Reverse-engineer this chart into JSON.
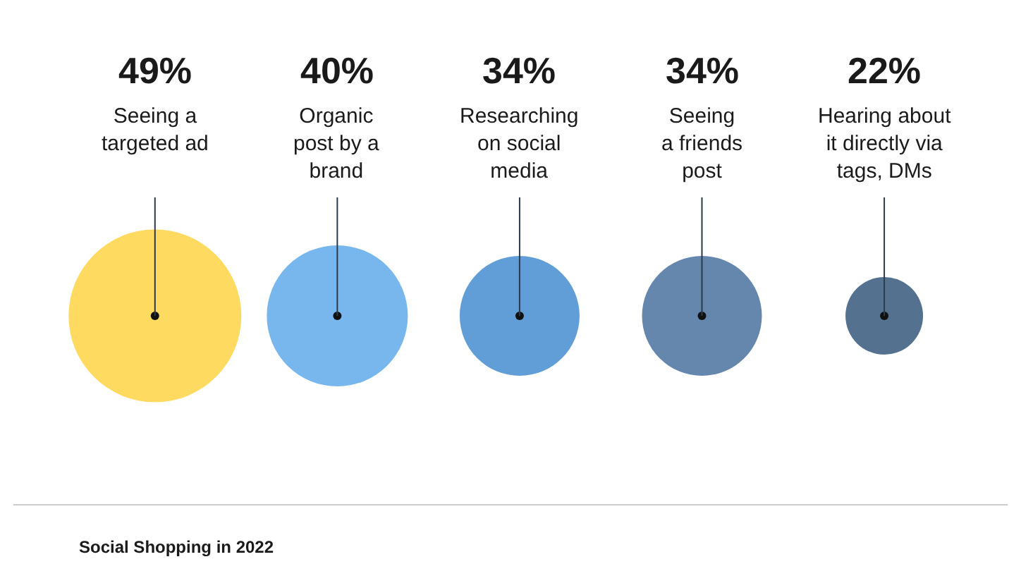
{
  "chart_data": {
    "type": "other",
    "categories": [
      "Seeing a\ntargeted ad",
      "Organic\npost by a\nbrand",
      "Researching\non social\nmedia",
      "Seeing\na friends\npost",
      "Hearing about\nit directly via\ntags, DMs"
    ],
    "values": [
      49,
      40,
      34,
      34,
      22
    ],
    "value_labels": [
      "49%",
      "40%",
      "34%",
      "34%",
      "22%"
    ],
    "colors": [
      "#ffca1c",
      "#3d99e5",
      "#1e73c4",
      "#23538a",
      "#0c3660"
    ],
    "annotations": [
      "Social Shopping in 2022"
    ]
  }
}
